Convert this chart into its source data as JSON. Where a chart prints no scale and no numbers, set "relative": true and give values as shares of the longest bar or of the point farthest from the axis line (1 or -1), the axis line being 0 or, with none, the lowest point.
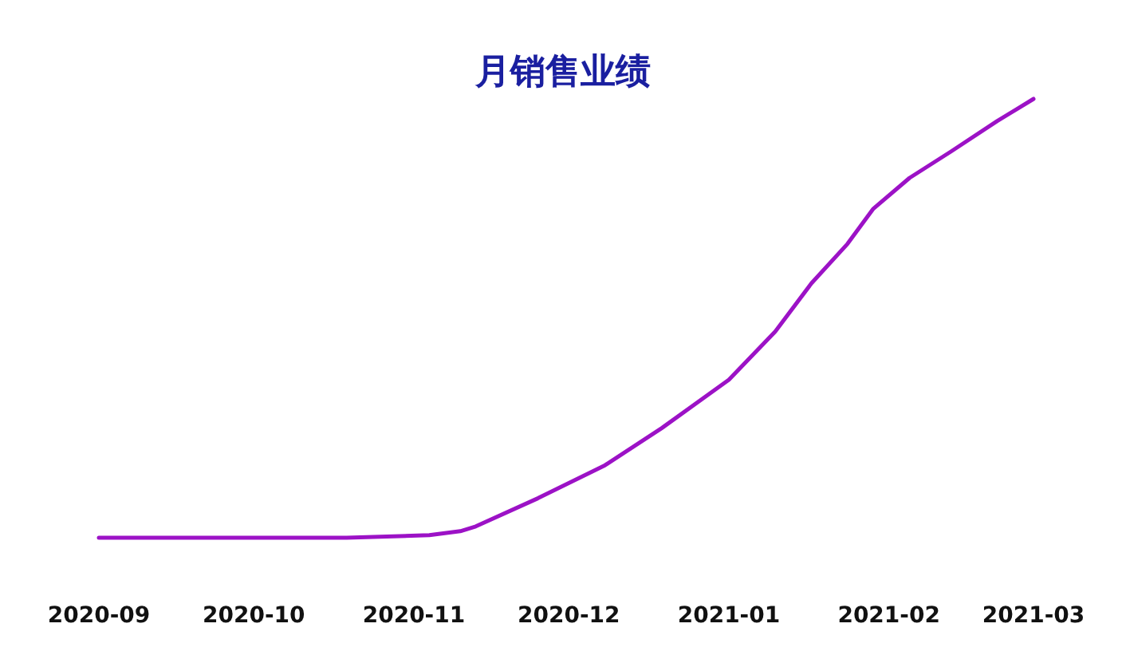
{
  "chart_data": {
    "type": "line",
    "title": "月销售业绩",
    "relative": true,
    "color": "#9c12c6",
    "x": [
      "2020-09-01",
      "2020-10-01",
      "2020-10-19",
      "2020-11-04",
      "2020-11-10",
      "2020-11-13",
      "2020-11-25",
      "2020-12-08",
      "2020-12-19",
      "2021-01-01",
      "2021-01-10",
      "2021-01-17",
      "2021-01-24",
      "2021-01-29",
      "2021-02-05",
      "2021-02-13",
      "2021-02-22",
      "2021-03-01"
    ],
    "values": [
      0,
      0,
      0,
      0.006,
      0.015,
      0.026,
      0.09,
      0.165,
      0.25,
      0.36,
      0.47,
      0.58,
      0.67,
      0.75,
      0.82,
      0.88,
      0.95,
      1
    ],
    "xlim": [
      "2020-09",
      "2021-03"
    ],
    "xticks": [
      "2020-09",
      "2020-10",
      "2020-11",
      "2020-12",
      "2021-01",
      "2021-02",
      "2021-03"
    ]
  }
}
